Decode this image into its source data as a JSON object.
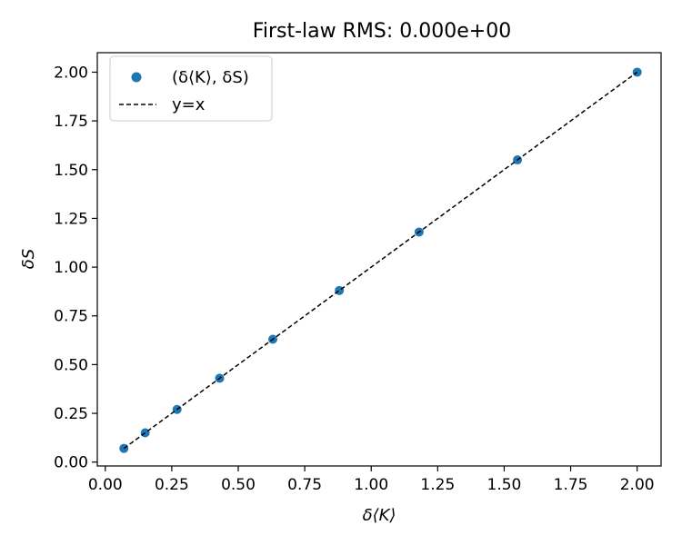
{
  "chart_data": {
    "type": "scatter",
    "title": "First-law RMS: 0.000e+00",
    "xlabel": "δ⟨K⟩",
    "ylabel": "δS",
    "xlim": [
      -0.03,
      2.09
    ],
    "ylim": [
      -0.02,
      2.1
    ],
    "xticks": [
      0.0,
      0.25,
      0.5,
      0.75,
      1.0,
      1.25,
      1.5,
      1.75,
      2.0
    ],
    "xtick_labels": [
      "0.00",
      "0.25",
      "0.50",
      "0.75",
      "1.00",
      "1.25",
      "1.50",
      "1.75",
      "2.00"
    ],
    "yticks": [
      0.0,
      0.25,
      0.5,
      0.75,
      1.0,
      1.25,
      1.5,
      1.75,
      2.0
    ],
    "ytick_labels": [
      "0.00",
      "0.25",
      "0.50",
      "0.75",
      "1.00",
      "1.25",
      "1.50",
      "1.75",
      "2.00"
    ],
    "grid": false,
    "legend": "upper-left",
    "series": [
      {
        "name": "(δ⟨K⟩,  δS)",
        "kind": "scatter",
        "color": "#1f77b4",
        "x": [
          0.07,
          0.15,
          0.27,
          0.43,
          0.63,
          0.88,
          1.18,
          1.55,
          2.0
        ],
        "y": [
          0.07,
          0.15,
          0.27,
          0.43,
          0.63,
          0.88,
          1.18,
          1.55,
          2.0
        ]
      },
      {
        "name": "y=x",
        "kind": "line",
        "style": "dashed",
        "color": "#000000",
        "x": [
          0.07,
          2.0
        ],
        "y": [
          0.07,
          2.0
        ]
      }
    ]
  }
}
